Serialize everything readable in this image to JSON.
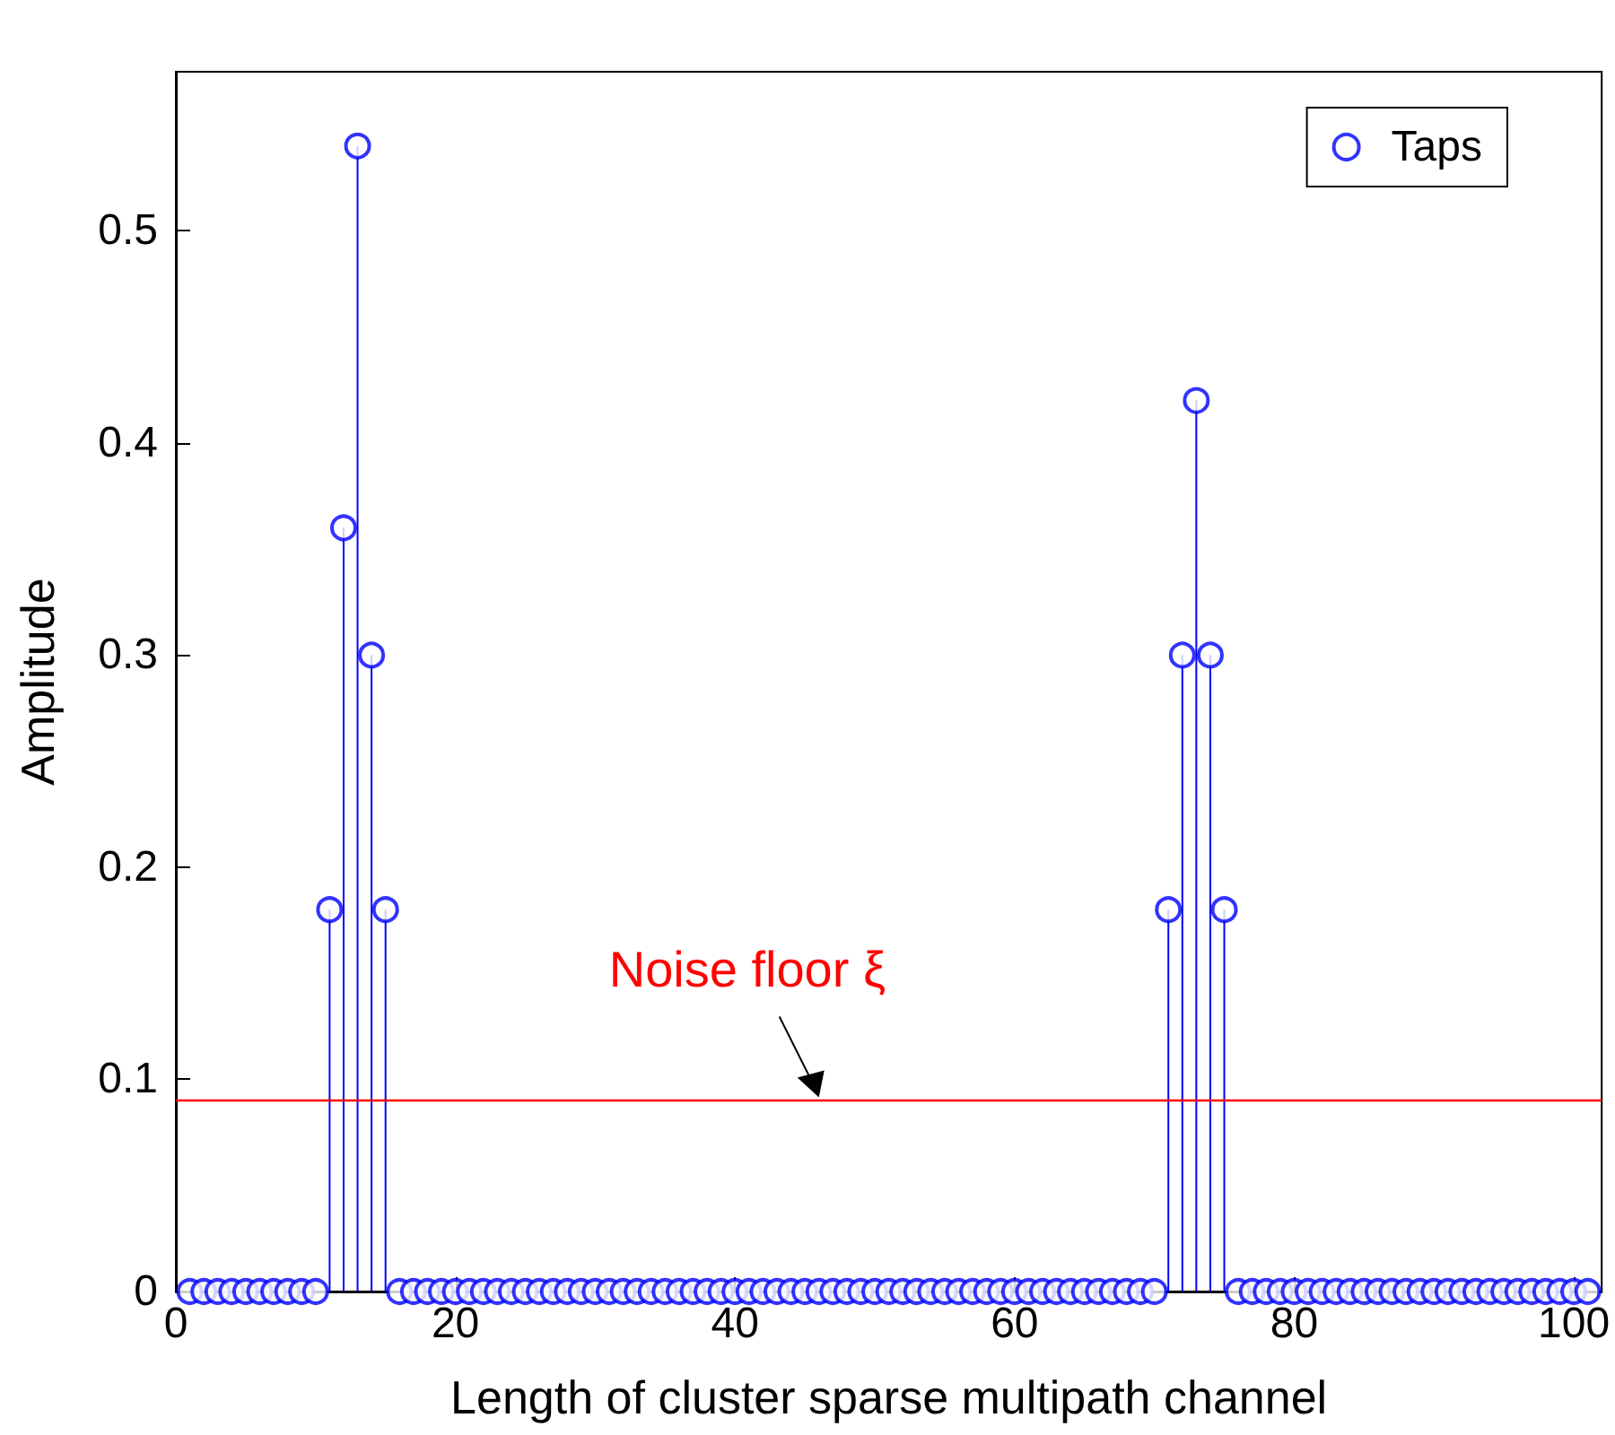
{
  "chart_data": {
    "type": "lollipop",
    "xlabel": "Length of cluster sparse multipath channel",
    "ylabel": "Amplitude",
    "x": [
      1,
      2,
      3,
      4,
      5,
      6,
      7,
      8,
      9,
      10,
      11,
      12,
      13,
      14,
      15,
      16,
      17,
      18,
      19,
      20,
      21,
      22,
      23,
      24,
      25,
      26,
      27,
      28,
      29,
      30,
      31,
      32,
      33,
      34,
      35,
      36,
      37,
      38,
      39,
      40,
      41,
      42,
      43,
      44,
      45,
      46,
      47,
      48,
      49,
      50,
      51,
      52,
      53,
      54,
      55,
      56,
      57,
      58,
      59,
      60,
      61,
      62,
      63,
      64,
      65,
      66,
      67,
      68,
      69,
      70,
      71,
      72,
      73,
      74,
      75,
      76,
      77,
      78,
      79,
      80,
      81,
      82,
      83,
      84,
      85,
      86,
      87,
      88,
      89,
      90,
      91,
      92,
      93,
      94,
      95,
      96,
      97,
      98,
      99,
      100,
      101
    ],
    "series": [
      {
        "name": "Taps",
        "color": "#0000ff",
        "values": [
          0,
          0,
          0,
          0,
          0,
          0,
          0,
          0,
          0,
          0,
          0.18,
          0.36,
          0.54,
          0.3,
          0.18,
          0,
          0,
          0,
          0,
          0,
          0,
          0,
          0,
          0,
          0,
          0,
          0,
          0,
          0,
          0,
          0,
          0,
          0,
          0,
          0,
          0,
          0,
          0,
          0,
          0,
          0,
          0,
          0,
          0,
          0,
          0,
          0,
          0,
          0,
          0,
          0,
          0,
          0,
          0,
          0,
          0,
          0,
          0,
          0,
          0,
          0,
          0,
          0,
          0,
          0,
          0,
          0,
          0,
          0,
          0,
          0.18,
          0.3,
          0.42,
          0.3,
          0.18,
          0,
          0,
          0,
          0,
          0,
          0,
          0,
          0,
          0,
          0,
          0,
          0,
          0,
          0,
          0,
          0,
          0,
          0,
          0,
          0,
          0,
          0,
          0,
          0,
          0,
          0
        ]
      }
    ],
    "xlim": [
      0,
      102
    ],
    "xticks": [
      0,
      20,
      40,
      60,
      80,
      100
    ],
    "ylim": [
      0,
      0.575
    ],
    "yticks": [
      0,
      0.1,
      0.2,
      0.3,
      0.4,
      0.5
    ],
    "ref_lines": [
      {
        "axis": "y",
        "value": 0.089,
        "color": "#ff0000"
      }
    ],
    "annotations": [
      {
        "text": "Noise floor ξ",
        "x": 46,
        "y": 0.089
      }
    ],
    "marker": "circle",
    "legend": "top right",
    "grid": false
  }
}
